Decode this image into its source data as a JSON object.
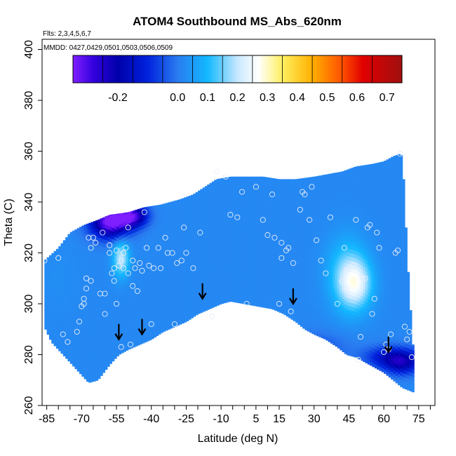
{
  "chart_data": {
    "type": "heatmap",
    "title": "ATOM4 Southbound MS_Abs_620nm",
    "flights_note": "Flts: 2,3,4,5,6,7",
    "dates_note": "MMDD: 0427,0429,0501,0503,0506,0509",
    "xlabel": "Latitude (deg N)",
    "ylabel": "Theta (C)",
    "xlim": [
      -87,
      82
    ],
    "ylim": [
      260,
      404
    ],
    "x_ticks": [
      -85,
      -70,
      -55,
      -40,
      -25,
      -10,
      5,
      15,
      30,
      45,
      60,
      75
    ],
    "x_minor_ticks": [
      -85,
      -80,
      -75,
      -70,
      -65,
      -60,
      -55,
      -50,
      -45,
      -40,
      -35,
      -30,
      -25,
      -20,
      -15,
      -10,
      -5,
      0,
      5,
      10,
      15,
      20,
      25,
      30,
      35,
      40,
      45,
      50,
      55,
      60,
      65,
      70,
      75,
      80
    ],
    "y_ticks": [
      260,
      280,
      300,
      320,
      340,
      360,
      380,
      400
    ],
    "colorbar": {
      "range": [
        -0.35,
        0.75
      ],
      "tick_values": [
        -0.2,
        0.0,
        0.1,
        0.2,
        0.3,
        0.4,
        0.5,
        0.6,
        0.7
      ],
      "tick_labels": [
        "-0.2",
        "0.0",
        "0.1",
        "0.2",
        "0.3",
        "0.4",
        "0.5",
        "0.6",
        "0.7"
      ],
      "bin_edges": [
        -0.35,
        -0.3,
        -0.25,
        -0.2,
        -0.15,
        -0.1,
        -0.05,
        0.0,
        0.05,
        0.1,
        0.15,
        0.2,
        0.25,
        0.3,
        0.35,
        0.4,
        0.45,
        0.5,
        0.55,
        0.6,
        0.65,
        0.7,
        0.75
      ],
      "color_stops": [
        {
          "value": -0.35,
          "color": "#7f1fff"
        },
        {
          "value": -0.28,
          "color": "#3300dd"
        },
        {
          "value": -0.2,
          "color": "#0000aa"
        },
        {
          "value": -0.1,
          "color": "#0022dd"
        },
        {
          "value": 0.0,
          "color": "#2a7cf0"
        },
        {
          "value": 0.1,
          "color": "#12b8ff"
        },
        {
          "value": 0.2,
          "color": "#c8e8ff"
        },
        {
          "value": 0.27,
          "color": "#ffffff"
        },
        {
          "value": 0.35,
          "color": "#fff060"
        },
        {
          "value": 0.45,
          "color": "#ffb000"
        },
        {
          "value": 0.55,
          "color": "#ff5000"
        },
        {
          "value": 0.62,
          "color": "#e00000"
        },
        {
          "value": 0.75,
          "color": "#a01010"
        }
      ]
    },
    "field": {
      "background_value": 0.02,
      "top_boundary": [
        [
          -86,
          317
        ],
        [
          -80,
          322
        ],
        [
          -75,
          328
        ],
        [
          -69,
          331
        ],
        [
          -63,
          333
        ],
        [
          -58,
          335
        ],
        [
          -50,
          336
        ],
        [
          -43,
          338
        ],
        [
          -36,
          339
        ],
        [
          -28,
          341
        ],
        [
          -22,
          343
        ],
        [
          -17,
          346
        ],
        [
          -12,
          349
        ],
        [
          -6,
          350
        ],
        [
          0,
          350
        ],
        [
          8,
          350
        ],
        [
          15,
          349
        ],
        [
          22,
          349
        ],
        [
          30,
          350
        ],
        [
          36,
          351
        ],
        [
          42,
          352
        ],
        [
          48,
          354
        ],
        [
          55,
          355
        ],
        [
          60,
          356
        ],
        [
          64,
          358
        ],
        [
          67,
          359
        ],
        [
          68,
          358
        ],
        [
          69,
          340
        ],
        [
          70,
          320
        ],
        [
          71,
          305
        ],
        [
          72,
          290
        ],
        [
          73,
          278
        ],
        [
          73.5,
          265
        ]
      ],
      "bottom_boundary": [
        [
          -86,
          291
        ],
        [
          -83,
          285
        ],
        [
          -78,
          280
        ],
        [
          -74,
          276
        ],
        [
          -70,
          272
        ],
        [
          -67,
          269
        ],
        [
          -63,
          270
        ],
        [
          -58,
          276
        ],
        [
          -54,
          280
        ],
        [
          -50,
          282
        ],
        [
          -45,
          284
        ],
        [
          -40,
          286
        ],
        [
          -35,
          289
        ],
        [
          -30,
          291
        ],
        [
          -25,
          293
        ],
        [
          -20,
          296
        ],
        [
          -15,
          298
        ],
        [
          -10,
          300
        ],
        [
          -6,
          301
        ],
        [
          0,
          300
        ],
        [
          6,
          299
        ],
        [
          12,
          298
        ],
        [
          17,
          296
        ],
        [
          22,
          293
        ],
        [
          26,
          290
        ],
        [
          30,
          288
        ],
        [
          35,
          286
        ],
        [
          40,
          283
        ],
        [
          44,
          280
        ],
        [
          48,
          279
        ],
        [
          52,
          277
        ],
        [
          56,
          275
        ],
        [
          60,
          273
        ],
        [
          64,
          270
        ],
        [
          68,
          267
        ],
        [
          73.5,
          265
        ]
      ],
      "features": [
        {
          "lat": -58,
          "theta": 331,
          "value": -0.25,
          "dlat": 6,
          "dtheta": 4
        },
        {
          "lat": -54,
          "theta": 334,
          "value": -0.22,
          "dlat": 6,
          "dtheta": 3
        },
        {
          "lat": -47,
          "theta": 335,
          "value": -0.18,
          "dlat": 4,
          "dtheta": 3
        },
        {
          "lat": -53,
          "theta": 318,
          "value": 0.2,
          "dlat": 2.5,
          "dtheta": 5
        },
        {
          "lat": 48,
          "theta": 308,
          "value": 0.2,
          "dlat": 5,
          "dtheta": 7
        },
        {
          "lat": 44,
          "theta": 312,
          "value": 0.13,
          "dlat": 6,
          "dtheta": 10
        },
        {
          "lat": 64,
          "theta": 279,
          "value": -0.17,
          "dlat": 8,
          "dtheta": 3
        },
        {
          "lat": 68,
          "theta": 276,
          "value": -0.12,
          "dlat": 5,
          "dtheta": 3
        },
        {
          "lat": 30,
          "theta": 283,
          "value": -0.05,
          "dlat": 10,
          "dtheta": 4
        },
        {
          "lat": -80,
          "theta": 310,
          "value": 0.03,
          "dlat": 6,
          "dtheta": 10
        }
      ]
    },
    "observations": [
      [
        -86,
        317
      ],
      [
        -80,
        318
      ],
      [
        -78,
        288
      ],
      [
        -76,
        285
      ],
      [
        -72,
        289
      ],
      [
        -71,
        293
      ],
      [
        -70,
        299
      ],
      [
        -69,
        300
      ],
      [
        -69,
        302
      ],
      [
        -68,
        306
      ],
      [
        -68,
        310
      ],
      [
        -66,
        309
      ],
      [
        -67,
        326
      ],
      [
        -66,
        322
      ],
      [
        -65,
        326
      ],
      [
        -64,
        324
      ],
      [
        -62,
        304
      ],
      [
        -61,
        328
      ],
      [
        -60,
        304
      ],
      [
        -60,
        296
      ],
      [
        -58,
        320
      ],
      [
        -58,
        323
      ],
      [
        -57,
        312
      ],
      [
        -56,
        309
      ],
      [
        -55,
        321
      ],
      [
        -56,
        314
      ],
      [
        -55,
        300
      ],
      [
        -54,
        315
      ],
      [
        -53,
        317
      ],
      [
        -53,
        283
      ],
      [
        -52,
        314
      ],
      [
        -52,
        320
      ],
      [
        -51,
        322
      ],
      [
        -50,
        312
      ],
      [
        -50,
        330
      ],
      [
        -49,
        284
      ],
      [
        -48,
        317
      ],
      [
        -48,
        307
      ],
      [
        -47,
        314
      ],
      [
        -46,
        305
      ],
      [
        -45,
        316
      ],
      [
        -44,
        313
      ],
      [
        -43,
        336
      ],
      [
        -42,
        322
      ],
      [
        -41,
        315
      ],
      [
        -40,
        292
      ],
      [
        -39,
        314
      ],
      [
        -37,
        322
      ],
      [
        -36,
        314
      ],
      [
        -34,
        326
      ],
      [
        -33,
        320
      ],
      [
        -31,
        320
      ],
      [
        -30,
        292
      ],
      [
        -29,
        316
      ],
      [
        -27,
        317
      ],
      [
        -26,
        330
      ],
      [
        -25,
        320
      ],
      [
        -22,
        314
      ],
      [
        -19,
        328
      ],
      [
        -14,
        295
      ],
      [
        -12,
        352
      ],
      [
        -8,
        350
      ],
      [
        -6,
        335
      ],
      [
        -3,
        334
      ],
      [
        -1,
        344
      ],
      [
        1,
        300
      ],
      [
        5,
        346
      ],
      [
        8,
        333
      ],
      [
        10,
        327
      ],
      [
        12,
        343
      ],
      [
        13,
        326
      ],
      [
        15,
        300
      ],
      [
        16,
        318
      ],
      [
        16,
        324
      ],
      [
        18,
        321
      ],
      [
        19,
        322
      ],
      [
        20,
        297
      ],
      [
        21,
        316
      ],
      [
        24,
        337
      ],
      [
        25,
        344
      ],
      [
        26,
        343
      ],
      [
        28,
        333
      ],
      [
        29,
        346
      ],
      [
        31,
        325
      ],
      [
        33,
        317
      ],
      [
        35,
        312
      ],
      [
        37,
        334
      ],
      [
        40,
        300
      ],
      [
        42,
        309
      ],
      [
        43,
        322
      ],
      [
        44,
        306
      ],
      [
        44,
        313
      ],
      [
        47,
        315
      ],
      [
        48,
        333
      ],
      [
        49,
        278
      ],
      [
        50,
        287
      ],
      [
        51,
        310
      ],
      [
        52,
        310
      ],
      [
        53,
        330
      ],
      [
        54,
        331
      ],
      [
        55,
        296
      ],
      [
        56,
        302
      ],
      [
        57,
        328
      ],
      [
        58,
        322
      ],
      [
        60,
        281
      ],
      [
        61,
        284
      ],
      [
        62,
        282
      ],
      [
        63,
        288
      ],
      [
        65,
        320
      ],
      [
        66,
        321
      ],
      [
        67,
        359
      ],
      [
        69,
        291
      ],
      [
        70,
        286
      ],
      [
        71,
        289
      ],
      [
        72,
        279
      ]
    ],
    "arrows": [
      {
        "lat": -54,
        "theta": 286
      },
      {
        "lat": -44,
        "theta": 288
      },
      {
        "lat": -18,
        "theta": 302
      },
      {
        "lat": 21,
        "theta": 300
      },
      {
        "lat": 62,
        "theta": 281
      }
    ]
  }
}
